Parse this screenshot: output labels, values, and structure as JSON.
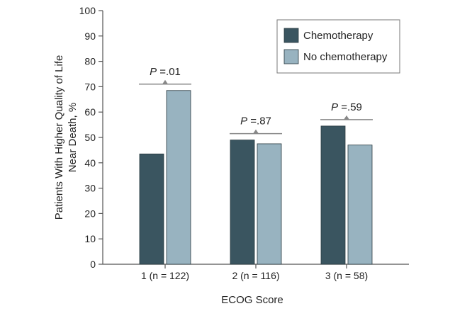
{
  "chart_data": {
    "type": "bar",
    "xlabel": "ECOG Score",
    "ylabel_lines": [
      "Patients With Higher Quality of Life",
      "Near Death, %"
    ],
    "ylim": [
      0,
      100
    ],
    "yticks": [
      0,
      10,
      20,
      30,
      40,
      50,
      60,
      70,
      80,
      90,
      100
    ],
    "categories": [
      "1 (n = 122)",
      "2 (n = 116)",
      "3 (n = 58)"
    ],
    "series": [
      {
        "name": "Chemotherapy",
        "color": "#3a5560",
        "values": [
          43.5,
          49,
          54.5
        ]
      },
      {
        "name": "No chemotherapy",
        "color": "#98b3c0",
        "values": [
          68.5,
          47.5,
          47
        ]
      }
    ],
    "annotations": [
      {
        "category": "1 (n = 122)",
        "p_prefix": "P",
        "p_value": " =.01"
      },
      {
        "category": "2 (n = 116)",
        "p_prefix": "P",
        "p_value": " =.87"
      },
      {
        "category": "3 (n = 58)",
        "p_prefix": "P",
        "p_value": " =.59"
      }
    ],
    "legend_placement": "top-right",
    "grid": false,
    "colors": {
      "axis": "#555555",
      "bracket": "#888888",
      "text": "#222222"
    }
  }
}
